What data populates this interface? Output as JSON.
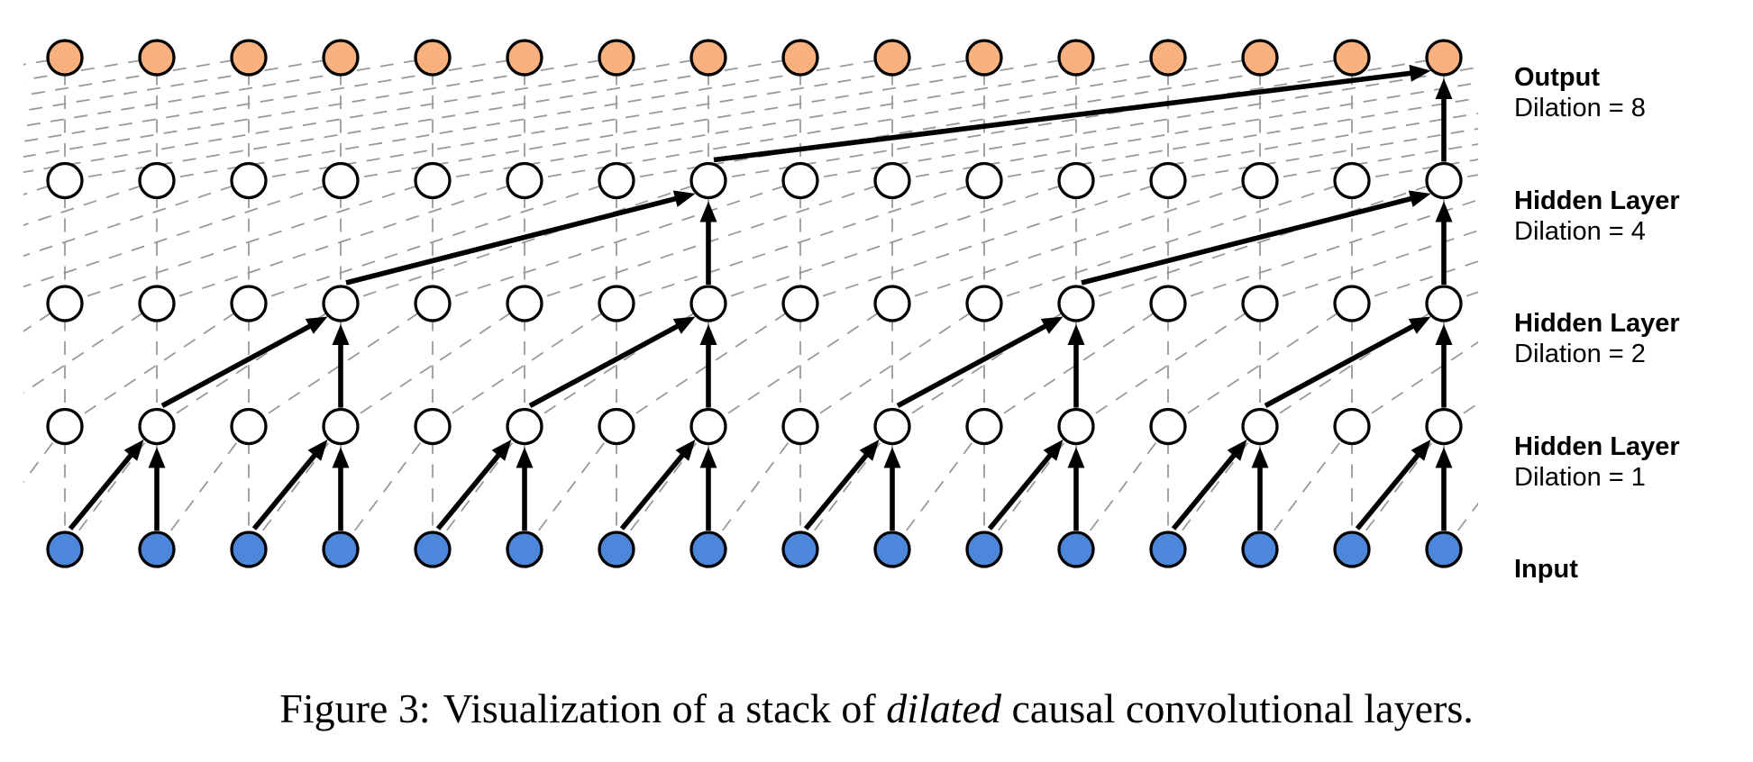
{
  "page": {
    "background": "#ffffff"
  },
  "diagram": {
    "columns": 16,
    "node_shape": "circle",
    "colors": {
      "input_fill": "#4D87DB",
      "hidden_fill": "#FFFFFF",
      "output_fill": "#F8B17E",
      "node_stroke": "#000000",
      "dashed_connection": "#999999",
      "bold_arrow": "#000000"
    },
    "layers": [
      {
        "name": "input",
        "label": "Input",
        "sublabel": "",
        "fill": "input_fill",
        "dilation": null,
        "bold_targets": []
      },
      {
        "name": "hidden-1",
        "label": "Hidden Layer",
        "sublabel": "Dilation = 1",
        "fill": "hidden_fill",
        "dilation": 1,
        "bold_targets": [
          1,
          3,
          5,
          7,
          9,
          11,
          13,
          15
        ]
      },
      {
        "name": "hidden-2",
        "label": "Hidden Layer",
        "sublabel": "Dilation = 2",
        "fill": "hidden_fill",
        "dilation": 2,
        "bold_targets": [
          3,
          7,
          11,
          15
        ]
      },
      {
        "name": "hidden-3",
        "label": "Hidden Layer",
        "sublabel": "Dilation = 4",
        "fill": "hidden_fill",
        "dilation": 4,
        "bold_targets": [
          7,
          15
        ]
      },
      {
        "name": "output",
        "label": "Output",
        "sublabel": "Dilation = 8",
        "fill": "output_fill",
        "dilation": 8,
        "bold_targets": [
          15
        ]
      }
    ]
  },
  "caption": {
    "prefix": "Figure 3:",
    "body_before_italic": "Visualization of a stack of ",
    "italic_word": "dilated",
    "body_after_italic": " causal convolutional layers."
  }
}
